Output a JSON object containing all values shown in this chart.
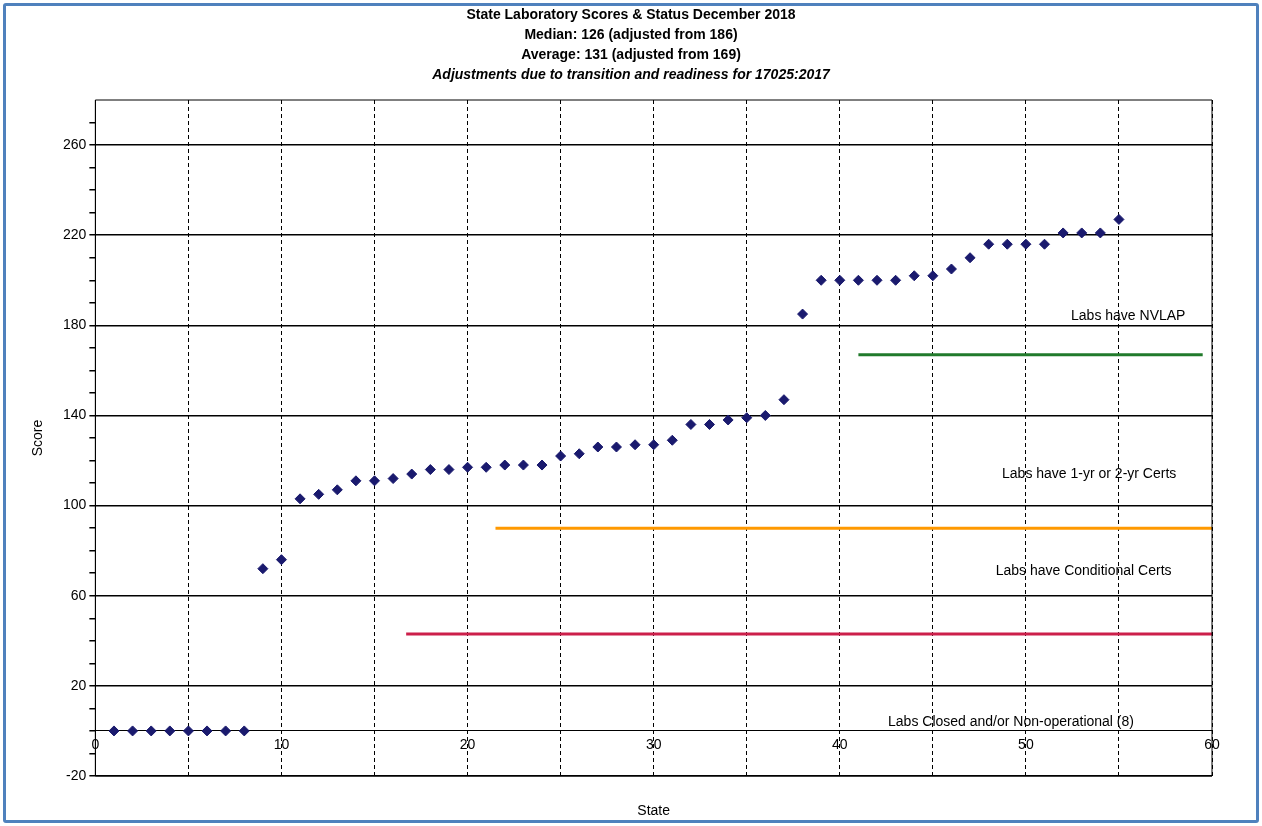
{
  "chart_data": {
    "type": "scatter",
    "title": "State Laboratory Scores & Status December 2018",
    "subtitle": "Median: 126 (adjusted from 186)\nAverage: 131 (adjusted from 169)",
    "xlabel": "State",
    "ylabel": "Score",
    "annotations": [
      "Adjustments due to transition and readiness for 17025:2017",
      "Labs have NVLAP",
      "Labs have 1-yr or 2-yr Certs",
      "Labs have Conditional Certs",
      "Labs Closed and/or Non-operational (8)"
    ],
    "x": [
      1,
      2,
      3,
      4,
      5,
      6,
      7,
      8,
      9,
      10,
      11,
      12,
      13,
      14,
      15,
      16,
      17,
      18,
      19,
      20,
      21,
      22,
      23,
      24,
      25,
      26,
      27,
      28,
      29,
      30,
      31,
      32,
      33,
      34,
      35,
      36,
      37,
      38,
      39,
      40,
      41,
      42,
      43,
      44,
      45,
      46,
      47,
      48,
      49,
      50,
      51,
      52,
      53,
      54,
      55
    ],
    "series": [
      {
        "color": "#1a1a6e",
        "marker": "diamond",
        "values": [
          0,
          0,
          0,
          0,
          0,
          0,
          0,
          0,
          72,
          76,
          103,
          105,
          107,
          111,
          111,
          112,
          114,
          116,
          116,
          117,
          117,
          118,
          118,
          118,
          122,
          123,
          126,
          126,
          127,
          127,
          129,
          136,
          136,
          138,
          139,
          140,
          147,
          185,
          200,
          200,
          200,
          200,
          200,
          202,
          202,
          205,
          210,
          216,
          216,
          216,
          216,
          221,
          221,
          221,
          227
        ]
      },
      {
        "type": "line",
        "color": "#217a2b",
        "x": [
          41,
          59.5
        ],
        "values": [
          167,
          167
        ],
        "marker": "none",
        "line_style": "solid"
      },
      {
        "type": "line",
        "color": "#ff9900",
        "x": [
          21.5,
          60
        ],
        "values": [
          90,
          90
        ],
        "marker": "none",
        "line_style": "solid"
      },
      {
        "type": "line",
        "color": "#cc1f4a",
        "x": [
          16.7,
          60
        ],
        "values": [
          43,
          43
        ],
        "marker": "none",
        "line_style": "solid"
      }
    ],
    "xlim": [
      0,
      60
    ],
    "xticks": [
      0,
      {
        "value": 5,
        "label": null
      },
      10,
      {
        "value": 15,
        "label": null
      },
      20,
      {
        "value": 25,
        "label": null
      },
      30,
      {
        "value": 35,
        "label": null
      },
      40,
      {
        "value": 45,
        "label": null
      },
      50,
      {
        "value": 55,
        "label": null
      },
      60
    ],
    "ylim": [
      -20,
      280
    ],
    "yticks": [
      -20,
      {
        "value": -10,
        "label": null
      },
      {
        "value": 0,
        "label": null
      },
      {
        "value": 10,
        "label": null
      },
      20,
      {
        "value": 30,
        "label": null
      },
      {
        "value": 40,
        "label": null
      },
      {
        "value": 50,
        "label": null
      },
      60,
      {
        "value": 70,
        "label": null
      },
      {
        "value": 80,
        "label": null
      },
      {
        "value": 90,
        "label": null
      },
      100,
      {
        "value": 110,
        "label": null
      },
      {
        "value": 120,
        "label": null
      },
      {
        "value": 130,
        "label": null
      },
      140,
      {
        "value": 150,
        "label": null
      },
      {
        "value": 160,
        "label": null
      },
      {
        "value": 170,
        "label": null
      },
      180,
      {
        "value": 190,
        "label": null
      },
      {
        "value": 200,
        "label": null
      },
      {
        "value": 210,
        "label": null
      },
      220,
      {
        "value": 230,
        "label": null
      },
      {
        "value": 240,
        "label": null
      },
      {
        "value": 250,
        "label": null
      },
      260,
      {
        "value": 270,
        "label": null
      }
    ],
    "grid": true,
    "legend": false
  }
}
